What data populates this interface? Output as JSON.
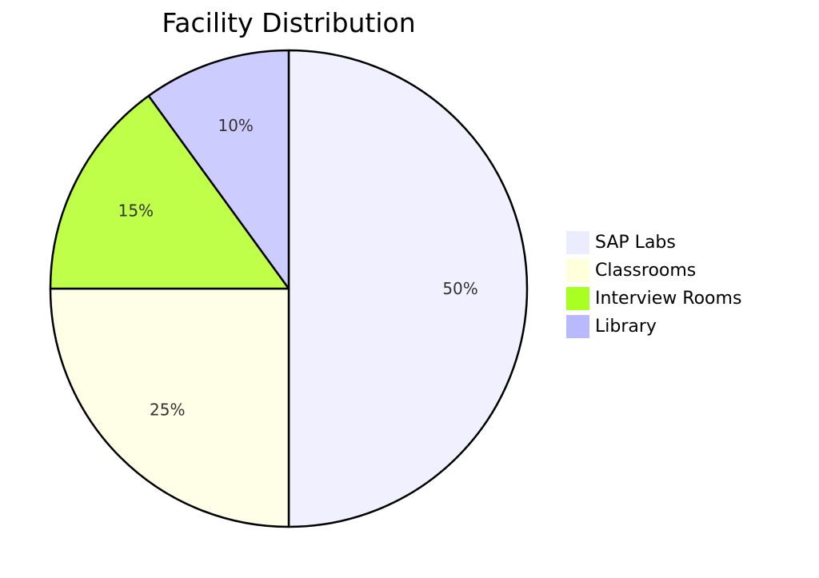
{
  "chart_data": {
    "type": "pie",
    "title": "Facility Distribution",
    "slices": [
      {
        "label": "SAP Labs",
        "value": 50,
        "display": "50%",
        "color": "#f0f0ff"
      },
      {
        "label": "Classrooms",
        "value": 25,
        "display": "25%",
        "color": "#ffffe8"
      },
      {
        "label": "Interview Rooms",
        "value": 15,
        "display": "15%",
        "color": "#bfff4a"
      },
      {
        "label": "Library",
        "value": 10,
        "display": "10%",
        "color": "#ccccff"
      }
    ],
    "start_angle_deg": 0,
    "direction": "clockwise",
    "legend": {
      "position": "right",
      "items": [
        {
          "label": "SAP Labs",
          "color": "#ececff"
        },
        {
          "label": "Classrooms",
          "color": "#ffffdc"
        },
        {
          "label": "Interview Rooms",
          "color": "#aaff22"
        },
        {
          "label": "Library",
          "color": "#b9b9ff"
        }
      ]
    }
  }
}
